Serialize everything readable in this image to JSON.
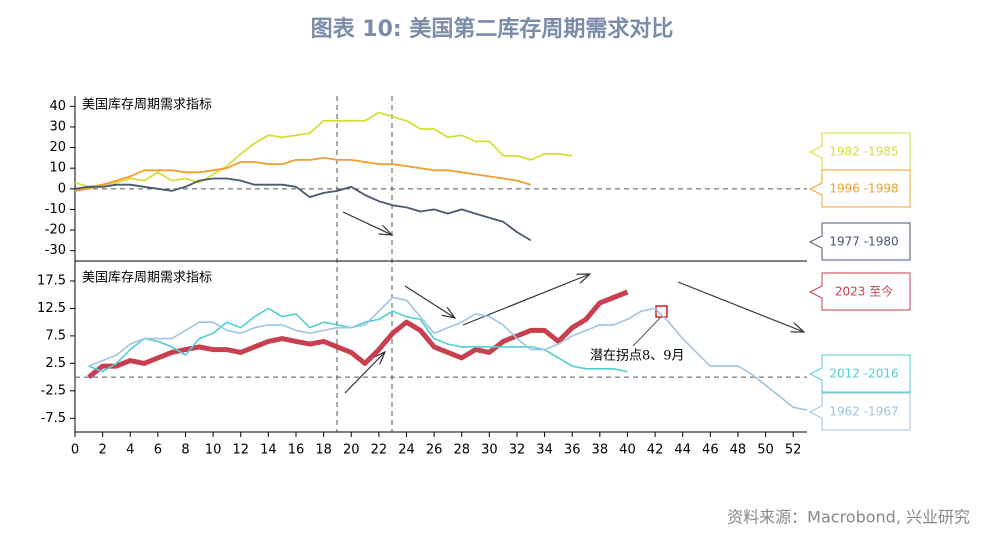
{
  "title": "图表 10: 美国第二库存周期需求对比",
  "source": "资料来源：Macrobond, 兴业研究",
  "chart_data": [
    {
      "type": "line",
      "annotation": "美国库存周期需求指标",
      "x": [
        0,
        1,
        2,
        3,
        4,
        5,
        6,
        7,
        8,
        9,
        10,
        11,
        12,
        13,
        14,
        15,
        16,
        17,
        18,
        19,
        20,
        21,
        22,
        23,
        24,
        25,
        26,
        27,
        28,
        29,
        30,
        31,
        32,
        33,
        34,
        35,
        36
      ],
      "xlim": [
        0,
        53
      ],
      "ylim": [
        -35,
        45
      ],
      "yticks": [
        40,
        30,
        20,
        10,
        0,
        -10,
        -20,
        -30
      ],
      "zero_line": true,
      "series": [
        {
          "name": "1982 -1985",
          "color": "#d4e03a",
          "values": [
            3,
            1,
            2,
            3,
            5,
            4,
            8,
            4,
            5,
            3,
            7,
            11,
            17,
            22,
            26,
            25,
            26,
            27,
            33,
            33,
            33,
            33,
            37,
            35,
            33,
            29,
            29,
            25,
            26,
            23,
            23,
            16,
            16,
            14,
            17,
            17,
            16
          ]
        },
        {
          "name": "1996 -1998",
          "color": "#f0a030",
          "values": [
            -1,
            0,
            2,
            4,
            6,
            9,
            9,
            9,
            8,
            8,
            9,
            10,
            13,
            13,
            12,
            12,
            14,
            14,
            15,
            14,
            14,
            13,
            12,
            12,
            11,
            10,
            9,
            9,
            8,
            7,
            6,
            5,
            4,
            2,
            null,
            null,
            null
          ]
        },
        {
          "name": "1977 -1980",
          "color": "#4a5870",
          "values": [
            0,
            1,
            1,
            2,
            2,
            1,
            0,
            -1,
            1,
            4,
            5,
            5,
            4,
            2,
            2,
            2,
            1,
            -4,
            -2,
            -1,
            1,
            -3,
            -6,
            -8,
            -9,
            -11,
            -10,
            -12,
            -10,
            -12,
            -14,
            -16,
            -21,
            -25,
            null,
            null,
            null
          ]
        }
      ]
    },
    {
      "type": "line",
      "annotation": "美国库存周期需求指标",
      "note": "潜在拐点8、9月",
      "x": [
        1,
        2,
        3,
        4,
        5,
        6,
        7,
        8,
        9,
        10,
        11,
        12,
        13,
        14,
        15,
        16,
        17,
        18,
        19,
        20,
        21,
        22,
        23,
        24,
        25,
        26,
        27,
        28,
        29,
        30,
        31,
        32,
        33,
        34,
        35,
        36,
        37,
        38,
        39,
        40,
        41,
        42,
        43,
        44,
        45,
        46,
        47,
        48,
        49,
        50,
        51,
        52,
        53
      ],
      "xlim": [
        0,
        53
      ],
      "xticks": [
        0,
        2,
        4,
        6,
        8,
        10,
        12,
        14,
        16,
        18,
        20,
        22,
        24,
        26,
        28,
        30,
        32,
        34,
        36,
        38,
        40,
        42,
        44,
        46,
        48,
        50,
        52
      ],
      "ylim": [
        -10,
        19.5
      ],
      "yticks": [
        17.5,
        12.5,
        7.5,
        2.5,
        -2.5,
        -7.5
      ],
      "zero_line": true,
      "series": [
        {
          "name": "2023 至今",
          "color": "#c8404f",
          "width": 5,
          "values": [
            0,
            2,
            2,
            3,
            2.5,
            3.5,
            4.5,
            5,
            5.5,
            5,
            5,
            4.5,
            5.5,
            6.5,
            7,
            6.5,
            6,
            6.5,
            5.5,
            4.5,
            2.5,
            5,
            8,
            10,
            8.5,
            5.5,
            4.5,
            3.5,
            5,
            4.5,
            6.5,
            7.5,
            8.5,
            8.5,
            6.5,
            9,
            10.5,
            13.5,
            14.5,
            15.5,
            null,
            null,
            null,
            null,
            null,
            null,
            null,
            null,
            null,
            null,
            null,
            null,
            null
          ]
        },
        {
          "name": "2012 -2016",
          "color": "#50d0d0",
          "width": 1.6,
          "values": [
            2,
            1,
            2.5,
            5,
            7,
            6.5,
            5.5,
            4,
            7,
            8,
            10,
            9,
            11,
            12.5,
            11,
            11.5,
            9,
            10,
            9.5,
            9,
            10,
            10.5,
            12,
            11,
            10.5,
            7,
            6,
            5.5,
            5.5,
            5.5,
            5.5,
            5.5,
            5.5,
            5,
            3.5,
            2,
            1.5,
            1.5,
            1.5,
            1,
            null,
            null,
            null,
            null,
            null,
            null,
            null,
            null,
            null,
            null,
            null,
            null,
            null
          ]
        },
        {
          "name": "1962 -1967",
          "color": "#a0c4e0",
          "width": 1.6,
          "values": [
            2,
            3,
            4,
            6,
            7,
            7,
            7,
            8.5,
            10,
            10,
            8.5,
            8,
            9,
            9.5,
            9.5,
            8.5,
            8,
            8.5,
            9,
            9,
            9.5,
            12,
            14.5,
            14,
            11,
            8,
            9,
            10,
            11.5,
            11,
            9.5,
            7,
            5,
            5,
            6,
            7.5,
            8.5,
            9.5,
            9.5,
            10.5,
            12,
            12.5,
            10,
            7,
            4.5,
            2,
            2,
            2,
            0.5,
            -1.5,
            -3.5,
            -5.5,
            -6
          ]
        }
      ]
    }
  ]
}
